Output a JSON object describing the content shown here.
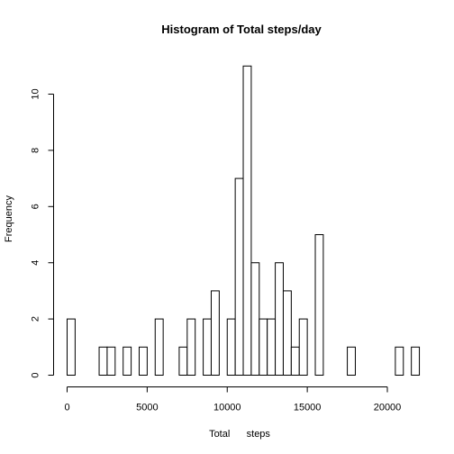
{
  "chart_data": {
    "type": "bar",
    "title": "Histogram of Total steps/day",
    "xlabel": "Total      steps",
    "ylabel": "Frequency",
    "bin_width": 500,
    "bin_start": 0,
    "counts": [
      2,
      0,
      0,
      0,
      1,
      1,
      0,
      1,
      0,
      1,
      0,
      2,
      0,
      0,
      1,
      2,
      0,
      2,
      3,
      0,
      2,
      7,
      11,
      4,
      2,
      2,
      4,
      3,
      1,
      2,
      0,
      5,
      0,
      0,
      0,
      1,
      0,
      0,
      0,
      0,
      0,
      1,
      0,
      1
    ],
    "xlim": [
      0,
      22000
    ],
    "ylim": [
      0,
      11
    ],
    "xticks": [
      0,
      5000,
      10000,
      15000,
      20000
    ],
    "yticks": [
      0,
      2,
      4,
      6,
      8,
      10
    ],
    "xtick_labels": [
      "0",
      "5000",
      "10000",
      "15000",
      "20000"
    ],
    "ytick_labels": [
      "0",
      "2",
      "4",
      "6",
      "8",
      "10"
    ],
    "grid": false,
    "bar_fill": "#ffffff",
    "bar_stroke": "#000000"
  }
}
